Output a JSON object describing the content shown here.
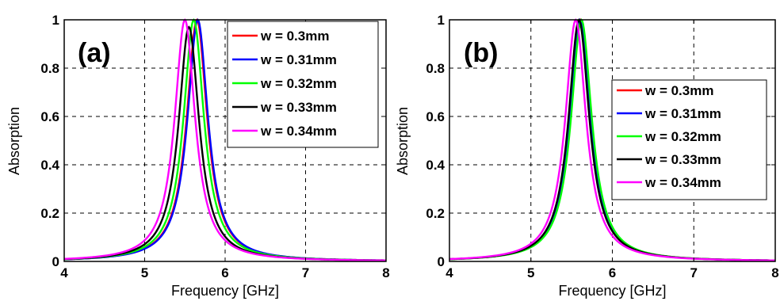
{
  "chart_data": [
    {
      "type": "line",
      "panel_label": "(a)",
      "xlabel": "Frequency [GHz]",
      "ylabel": "Absorption",
      "xlim": [
        4,
        8
      ],
      "ylim": [
        0,
        1
      ],
      "xticks": [
        "4",
        "5",
        "6",
        "7",
        "8"
      ],
      "yticks": [
        "0",
        "0.2",
        "0.4",
        "0.6",
        "0.8",
        "1"
      ],
      "grid": true,
      "legend_position": "top-right",
      "lorentz_width_ghz": 0.155,
      "series": [
        {
          "name": "w = 0.3mm",
          "color": "#ff0000",
          "peak_x": 5.65,
          "peak_y": 1.0
        },
        {
          "name": "w = 0.31mm",
          "color": "#0000ff",
          "peak_x": 5.66,
          "peak_y": 1.0
        },
        {
          "name": "w = 0.32mm",
          "color": "#00ff00",
          "peak_x": 5.61,
          "peak_y": 1.0
        },
        {
          "name": "w = 0.33mm",
          "color": "#000000",
          "peak_x": 5.55,
          "peak_y": 0.97
        },
        {
          "name": "w = 0.34mm",
          "color": "#ff00ff",
          "peak_x": 5.5,
          "peak_y": 1.0
        }
      ]
    },
    {
      "type": "line",
      "panel_label": "(b)",
      "xlabel": "Frequency [GHz]",
      "ylabel": "Absorption",
      "xlim": [
        4,
        8
      ],
      "ylim": [
        0,
        1
      ],
      "xticks": [
        "4",
        "5",
        "6",
        "7",
        "8"
      ],
      "yticks": [
        "0",
        "0.2",
        "0.4",
        "0.6",
        "0.8",
        "1"
      ],
      "grid": true,
      "legend_position": "right",
      "lorentz_width_ghz": 0.155,
      "series": [
        {
          "name": "w = 0.3mm",
          "color": "#ff0000",
          "peak_x": 5.61,
          "peak_y": 1.0
        },
        {
          "name": "w = 0.31mm",
          "color": "#0000ff",
          "peak_x": 5.6,
          "peak_y": 1.0
        },
        {
          "name": "w = 0.32mm",
          "color": "#00ff00",
          "peak_x": 5.62,
          "peak_y": 1.0
        },
        {
          "name": "w = 0.33mm",
          "color": "#000000",
          "peak_x": 5.59,
          "peak_y": 1.0
        },
        {
          "name": "w = 0.34mm",
          "color": "#ff00ff",
          "peak_x": 5.55,
          "peak_y": 1.0
        }
      ]
    }
  ]
}
